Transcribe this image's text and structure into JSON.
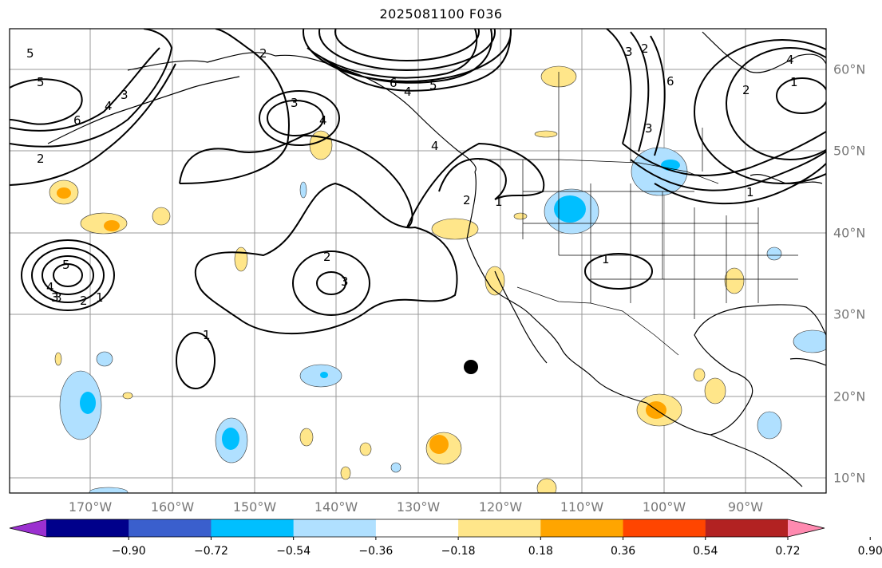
{
  "title": "2025081100 F036",
  "map": {
    "lon_labels": [
      "170°W",
      "160°W",
      "150°W",
      "140°W",
      "130°W",
      "120°W",
      "110°W",
      "100°W",
      "90°W"
    ],
    "lat_labels": [
      "60°N",
      "50°N",
      "40°N",
      "30°N",
      "20°N",
      "10°N"
    ],
    "contour_labels": [
      "5",
      "4",
      "3",
      "5",
      "6",
      "4",
      "3",
      "2",
      "2",
      "3",
      "4",
      "6",
      "5",
      "4",
      "3",
      "2",
      "6",
      "1",
      "4",
      "2",
      "1",
      "2",
      "1",
      "5",
      "3",
      "4",
      "3",
      "2",
      "1",
      "2",
      "3",
      "1",
      "1"
    ],
    "marker": "black-dot"
  },
  "colorbar": {
    "ticks": [
      "−0.90",
      "−0.72",
      "−0.54",
      "−0.36",
      "−0.18",
      "0.18",
      "0.36",
      "0.54",
      "0.72",
      "0.90"
    ],
    "colors": [
      "#9b30d0",
      "#00008b",
      "#3a5fcd",
      "#00bfff",
      "#b0e0ff",
      "#ffffff",
      "#ffe68a",
      "#ffa500",
      "#ff4500",
      "#b22222",
      "#ff8ab0"
    ]
  }
}
